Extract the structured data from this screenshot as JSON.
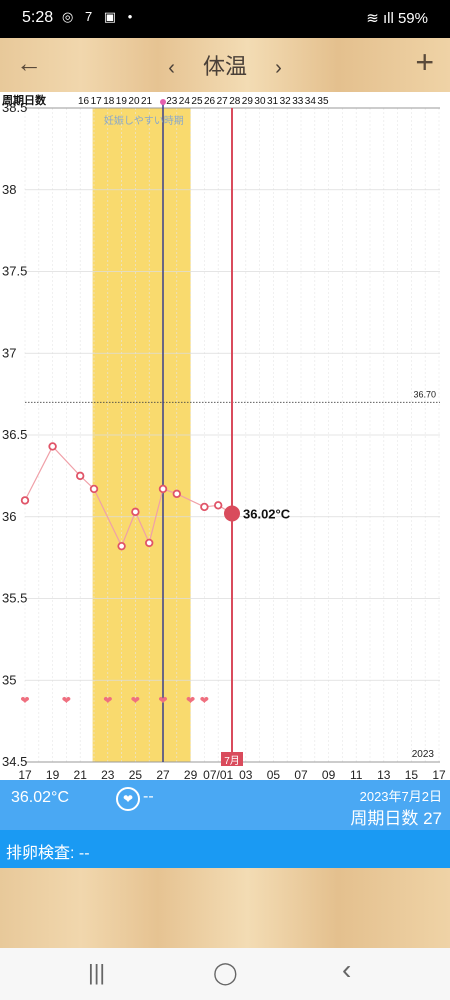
{
  "status_bar": {
    "time": "5:28",
    "left_icons": "◎ 7 ▣ •",
    "battery": "59%",
    "signal_icons": "≋ ıll"
  },
  "header": {
    "title": "体温",
    "back_icon": "←",
    "prev_icon": "‹",
    "next_icon": "›",
    "add_icon": "+"
  },
  "chart": {
    "cycle_label": "周期日数",
    "cycle_days": [
      "16",
      "17",
      "18",
      "19",
      "20",
      "21",
      "",
      "23",
      "24",
      "25",
      "26",
      "27",
      "28",
      "29",
      "30",
      "31",
      "32",
      "33",
      "34",
      "35"
    ],
    "fertile_label": "妊娠しやすい時期",
    "threshold_label": "36.70",
    "year_label": "2023",
    "month_label": "7月",
    "current_temp_label": "36.02°C"
  },
  "chart_data": {
    "type": "line",
    "y_ticks": [
      "38.5",
      "38",
      "37.5",
      "37",
      "36.5",
      "36",
      "35.5",
      "35",
      "34.5"
    ],
    "ylim": [
      34.5,
      38.5
    ],
    "x_tick_labels": [
      "17",
      "19",
      "21",
      "23",
      "25",
      "27",
      "29",
      "07/01",
      "03",
      "05",
      "07",
      "09",
      "11",
      "13",
      "15",
      "17"
    ],
    "series": [
      {
        "x": [
          "17",
          "19",
          "21",
          "22",
          "24",
          "25",
          "26",
          "27",
          "28",
          "30",
          "31",
          "07/02"
        ],
        "values": [
          36.1,
          36.43,
          36.25,
          36.17,
          35.82,
          36.03,
          35.84,
          36.17,
          36.14,
          36.06,
          36.07,
          36.02
        ]
      }
    ],
    "heart_days": [
      "17",
      "20",
      "23",
      "25",
      "27",
      "29",
      "30"
    ],
    "threshold": 36.7,
    "fertile_window": [
      "22",
      "28"
    ],
    "today": "07/02"
  },
  "info_bar": {
    "temp": "36.02°C",
    "ovulation_icon": "❤",
    "ovulation_value": "--",
    "date": "2023年7月2日",
    "cycle": "周期日数 27"
  },
  "ovulation_test": {
    "label": "排卵検査: --"
  },
  "nav": {
    "recent_icon": "|||",
    "home_icon": "◯",
    "back_icon": "‹"
  },
  "colors": {
    "accent_red": "#d94b5c",
    "fertile": "#f9da6e",
    "info_blue": "#4aa8f3",
    "ovul_blue": "#1a9af3",
    "cursor_blue": "#3b3f8a"
  }
}
